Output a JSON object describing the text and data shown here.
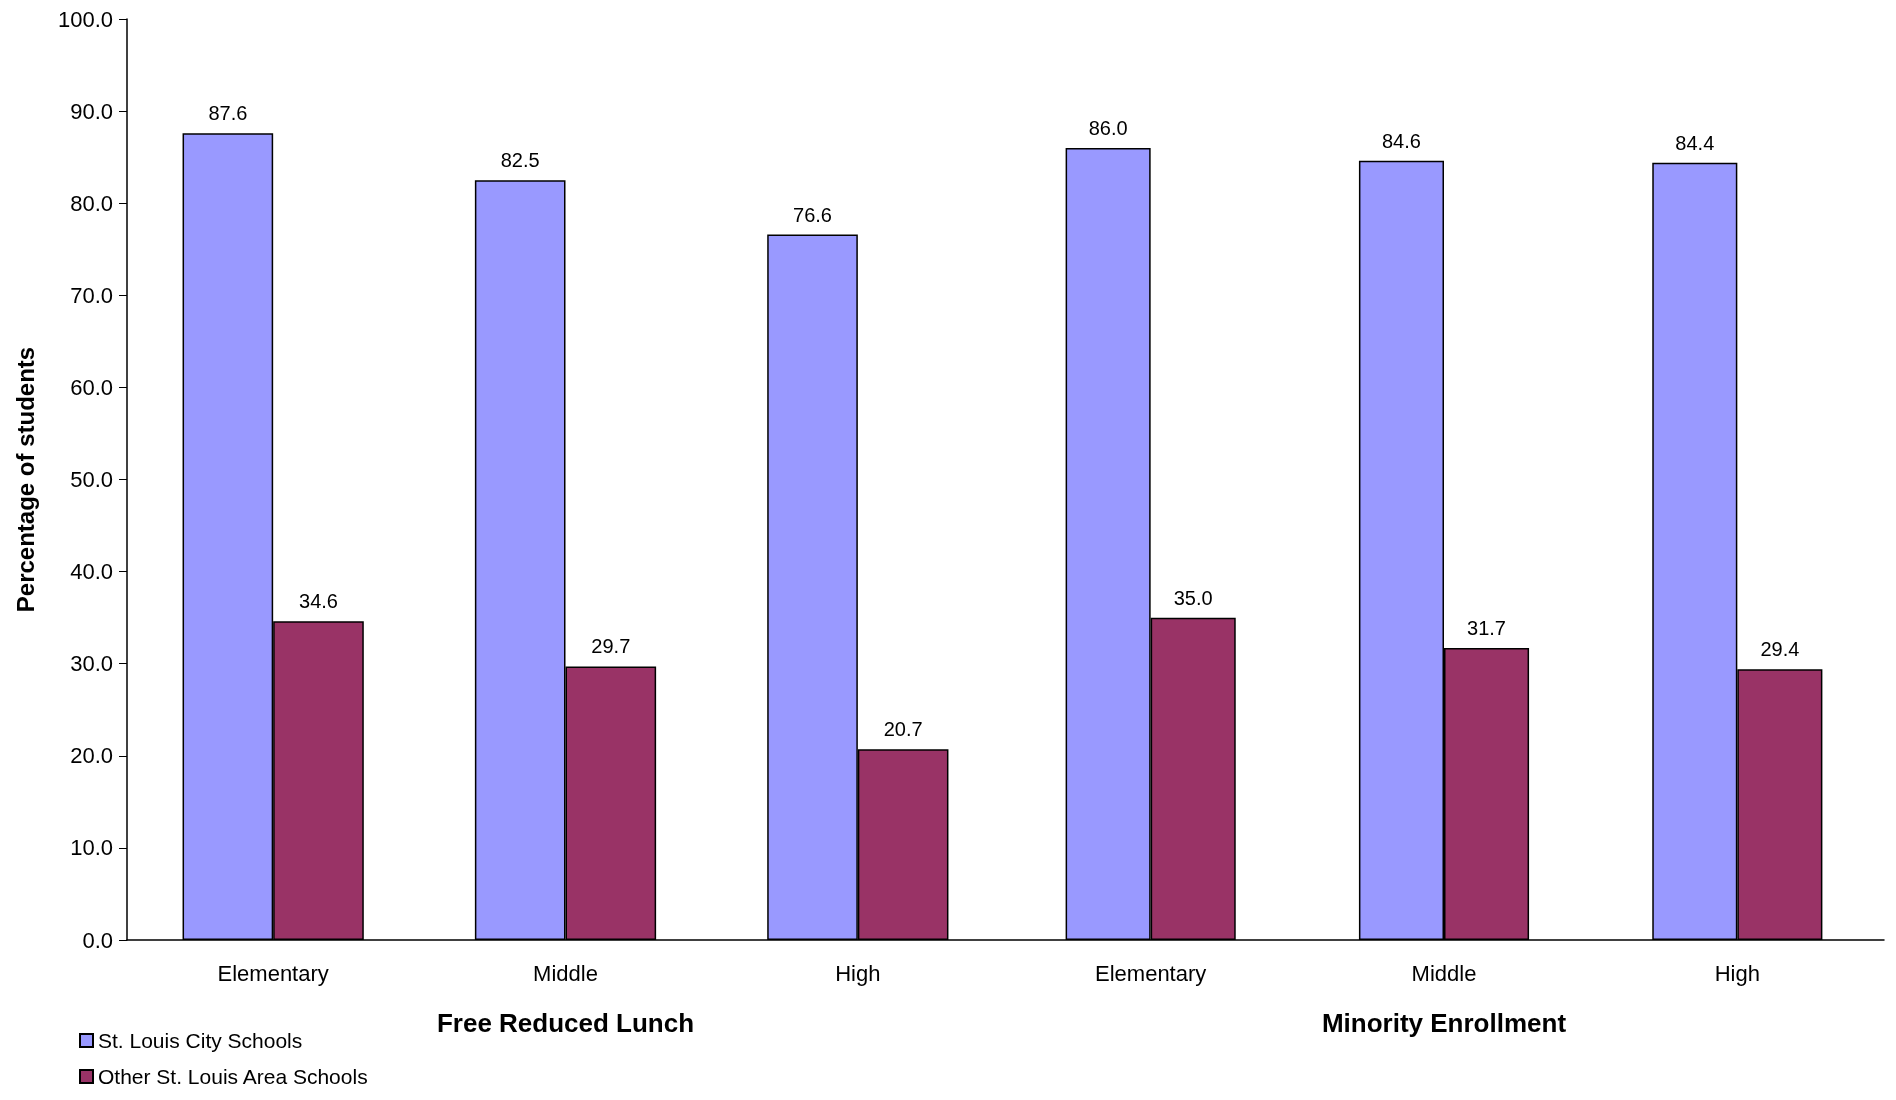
{
  "chart_data": [
    {
      "type": "bar",
      "categories": [
        "Elementary",
        "Middle",
        "High"
      ],
      "xlabel": "Free Reduced Lunch",
      "ylabel": "Percentage of students",
      "ylim": [
        0,
        100
      ],
      "yticks": [
        {
          "value": 0,
          "label": "0.0"
        },
        {
          "value": 10,
          "label": "10.0"
        },
        {
          "value": 20,
          "label": "20.0"
        },
        {
          "value": 30,
          "label": "30.0"
        },
        {
          "value": 40,
          "label": "40.0"
        },
        {
          "value": 50,
          "label": "50.0"
        },
        {
          "value": 60,
          "label": "60.0"
        },
        {
          "value": 70,
          "label": "70.0"
        },
        {
          "value": 80,
          "label": "80.0"
        },
        {
          "value": 90,
          "label": "90.0"
        },
        {
          "value": 100,
          "label": "100.0"
        }
      ],
      "grid": false,
      "legend": "bottom left",
      "series": [
        {
          "name": "St. Louis City Schools",
          "color": "#9999ff",
          "values": [
            87.6,
            82.5,
            76.6
          ],
          "value_labels": [
            "87.6",
            "82.5",
            "76.6"
          ]
        },
        {
          "name": "Other St. Louis Area Schools",
          "color": "#993366",
          "values": [
            34.6,
            29.7,
            20.7
          ],
          "value_labels": [
            "34.6",
            "29.7",
            "20.7"
          ]
        }
      ]
    },
    {
      "type": "bar",
      "categories": [
        "Elementary",
        "Middle",
        "High"
      ],
      "xlabel": "Minority Enrollment",
      "ylim": [
        0,
        100
      ],
      "tick_labels": "x",
      "grid": false,
      "series": [
        {
          "color": "#9999ff",
          "values": [
            86.0,
            84.6,
            84.4
          ],
          "value_labels": [
            "86.0",
            "84.6",
            "84.4"
          ]
        },
        {
          "color": "#993366",
          "values": [
            35.0,
            31.7,
            29.4
          ],
          "value_labels": [
            "35.0",
            "31.7",
            "29.4"
          ]
        }
      ]
    }
  ]
}
